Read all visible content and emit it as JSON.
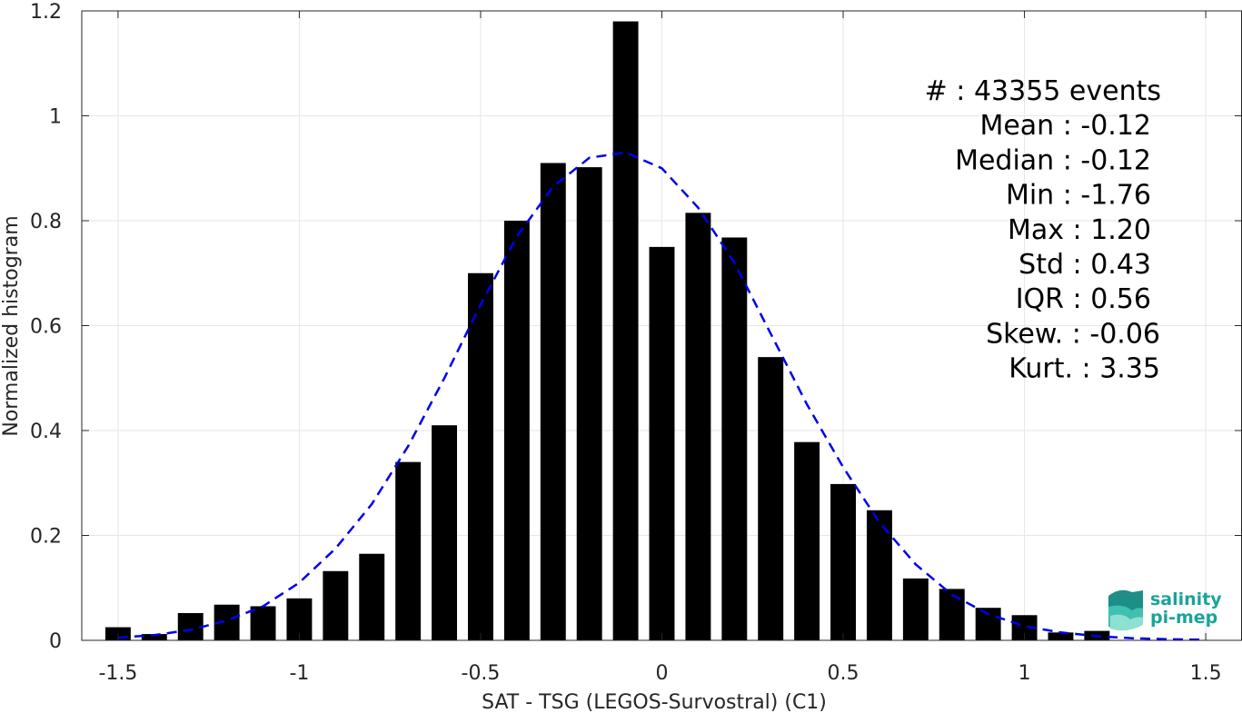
{
  "chart_data": {
    "type": "bar",
    "xlabel": "SAT - TSG (LEGOS-Survostral) (C1)",
    "ylabel": "Normalized histogram",
    "xlim": [
      -1.6,
      1.6
    ],
    "ylim": [
      0,
      1.2
    ],
    "xticks": [
      -1.5,
      -1,
      -0.5,
      0,
      0.5,
      1,
      1.5
    ],
    "xtick_labels": [
      "-1.5",
      "-1",
      "-0.5",
      "0",
      "0.5",
      "1",
      "1.5"
    ],
    "yticks": [
      0,
      0.2,
      0.4,
      0.6,
      0.8,
      1,
      1.2
    ],
    "ytick_labels": [
      "0",
      "0.2",
      "0.4",
      "0.6",
      "0.8",
      "1",
      "1.2"
    ],
    "grid": true,
    "bar_width": 0.07,
    "bars": {
      "x": [
        -1.5,
        -1.4,
        -1.3,
        -1.2,
        -1.1,
        -1.0,
        -0.9,
        -0.8,
        -0.7,
        -0.6,
        -0.5,
        -0.4,
        -0.3,
        -0.2,
        -0.1,
        0.0,
        0.1,
        0.2,
        0.3,
        0.4,
        0.5,
        0.6,
        0.7,
        0.8,
        0.9,
        1.0,
        1.1,
        1.2
      ],
      "values": [
        0.025,
        0.012,
        0.052,
        0.068,
        0.065,
        0.08,
        0.132,
        0.165,
        0.34,
        0.41,
        0.7,
        0.8,
        0.91,
        0.902,
        1.18,
        0.75,
        0.815,
        0.768,
        0.54,
        0.378,
        0.298,
        0.248,
        0.118,
        0.098,
        0.062,
        0.048,
        0.015,
        0.018
      ],
      "color": "#000000"
    },
    "fit_curve": {
      "style": "dashed",
      "color": "#0000ee",
      "x": [
        -1.5,
        -1.4,
        -1.3,
        -1.2,
        -1.1,
        -1.0,
        -0.9,
        -0.8,
        -0.7,
        -0.6,
        -0.5,
        -0.4,
        -0.3,
        -0.2,
        -0.1,
        0.0,
        0.1,
        0.2,
        0.3,
        0.4,
        0.5,
        0.6,
        0.7,
        0.8,
        0.9,
        1.0,
        1.1,
        1.2,
        1.3,
        1.4,
        1.5
      ],
      "y": [
        0.005,
        0.01,
        0.02,
        0.038,
        0.065,
        0.11,
        0.175,
        0.26,
        0.37,
        0.5,
        0.64,
        0.77,
        0.865,
        0.92,
        0.93,
        0.9,
        0.825,
        0.72,
        0.585,
        0.45,
        0.33,
        0.225,
        0.145,
        0.087,
        0.05,
        0.027,
        0.015,
        0.008,
        0.004,
        0.002,
        0.001
      ]
    },
    "stats": [
      "#  : 43355 events",
      "Mean : -0.12",
      "Median : -0.12",
      "Min : -1.76",
      "Max : 1.20",
      "Std : 0.43",
      "IQR : 0.56",
      "Skew. : -0.06",
      "Kurt. : 3.35"
    ],
    "logo": {
      "line1": "salinity",
      "line2": "pi-mep"
    }
  }
}
